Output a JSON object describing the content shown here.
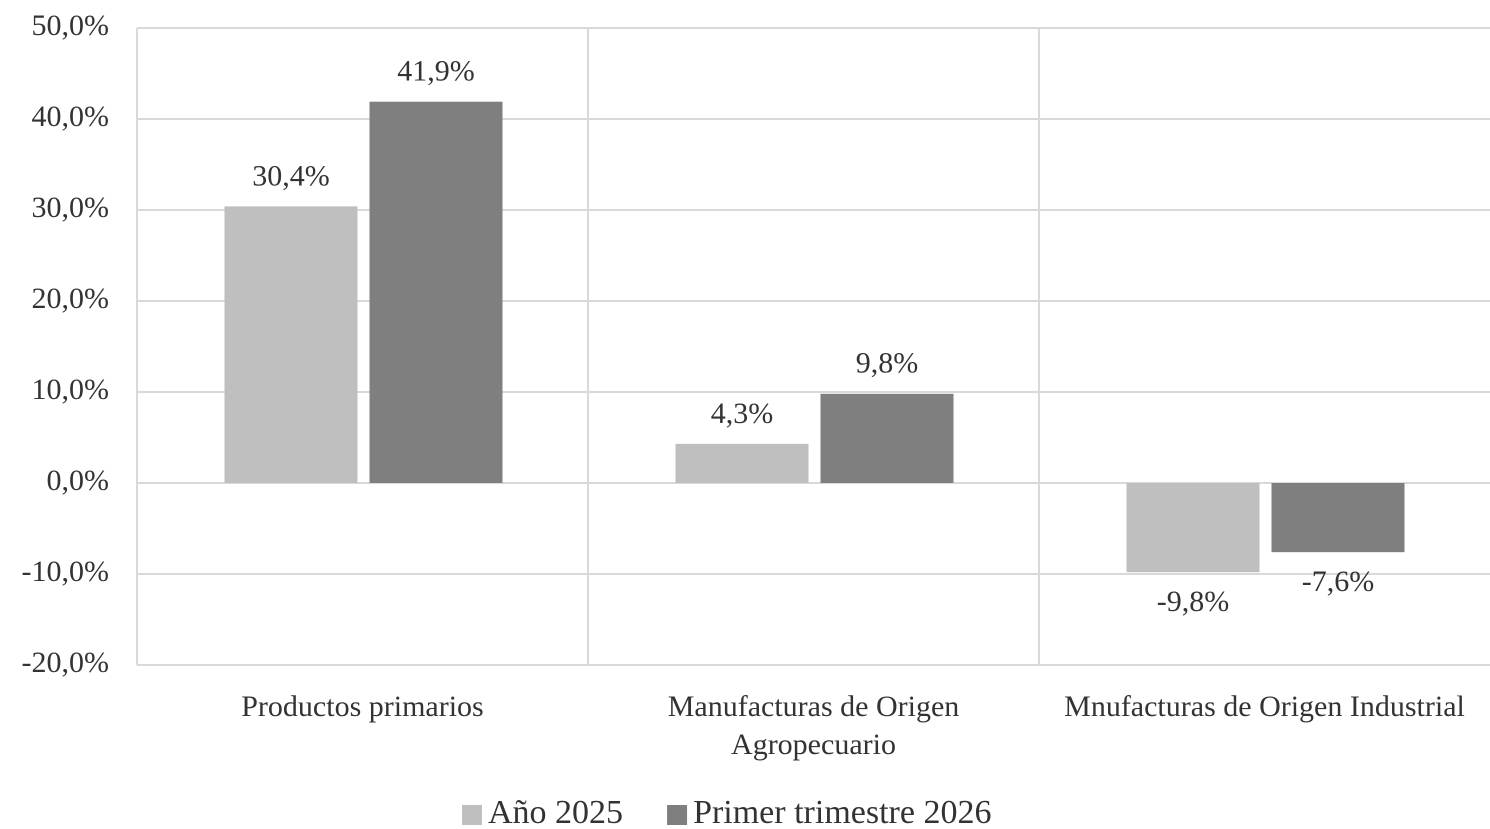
{
  "chart_data": {
    "type": "bar",
    "categories": [
      "Productos primarios",
      "Manufacturas de Origen Agropecuario",
      "Mnufacturas de Origen Industrial"
    ],
    "series": [
      {
        "name": "Año 2025",
        "color": "#bfbfbf",
        "values": [
          30.4,
          4.3,
          -9.8
        ],
        "value_labels": [
          "30,4%",
          "4,3%",
          "-9,8%"
        ]
      },
      {
        "name": "Primer trimestre 2026",
        "color": "#7f7f7f",
        "values": [
          41.9,
          9.8,
          -7.6
        ],
        "value_labels": [
          "41,9%",
          "9,8%",
          "-7,6%"
        ]
      }
    ],
    "ylim": [
      -20,
      50
    ],
    "yticks": [
      {
        "value": -20,
        "label": "-20,0%"
      },
      {
        "value": -10,
        "label": "-10,0%"
      },
      {
        "value": 0,
        "label": "0,0%"
      },
      {
        "value": 10,
        "label": "10,0%"
      },
      {
        "value": 20,
        "label": "20,0%"
      },
      {
        "value": 30,
        "label": "30,0%"
      },
      {
        "value": 40,
        "label": "40,0%"
      },
      {
        "value": 50,
        "label": "50,0%"
      }
    ],
    "grid": true,
    "legend": "bottom"
  }
}
